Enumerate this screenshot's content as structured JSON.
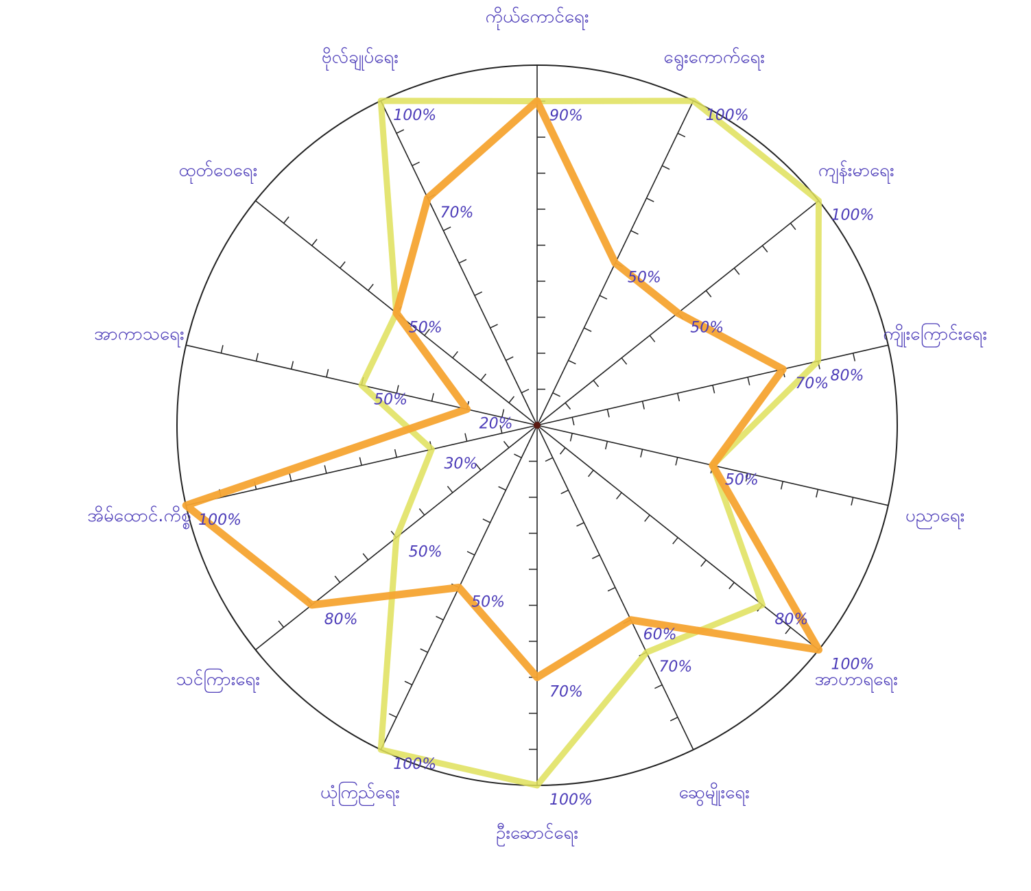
{
  "chart_data": {
    "type": "radar",
    "categories": [
      "ကိုယ်ကောင်ရေး",
      "ရွေးကောက်ရေး",
      "ကျန်းမာရေး",
      "ကျိုးကြောင်းရေး",
      "ပညာရေး",
      "အာဟာရရေး",
      "ဆွေမျိုးရေး",
      "ဦးဆောင်ရေး",
      "ယုံကြည်ရေး",
      "သင်ကြားရေး",
      "အိမ်ထောင်.ကိစ္စ",
      "အာကာသရေး",
      "ထုတ်ဝေရေး",
      "ဗိုလ်ချုပ်ရေး"
    ],
    "series": [
      {
        "color": "#f5a431",
        "values": [
          90,
          50,
          50,
          70,
          50,
          100,
          60,
          70,
          50,
          80,
          100,
          20,
          50,
          70
        ],
        "value_labels": [
          "90%",
          "50%",
          "50%",
          "70%",
          "50%",
          "100%",
          "60%",
          "70%",
          "50%",
          "80%",
          "100%",
          "20%",
          "50%",
          "70%"
        ]
      },
      {
        "color": "#dfe05a",
        "values": [
          90,
          100,
          100,
          80,
          50,
          80,
          70,
          100,
          100,
          50,
          30,
          50,
          50,
          100
        ],
        "value_labels": [
          null,
          "100%",
          "100%",
          "80%",
          null,
          "80%",
          "70%",
          "100%",
          "100%",
          "50%",
          "30%",
          "50%",
          null,
          "100%"
        ]
      }
    ],
    "rlim": [
      0,
      100
    ],
    "rticks": [
      10,
      20,
      30,
      40,
      50,
      60,
      70,
      80,
      90
    ]
  }
}
